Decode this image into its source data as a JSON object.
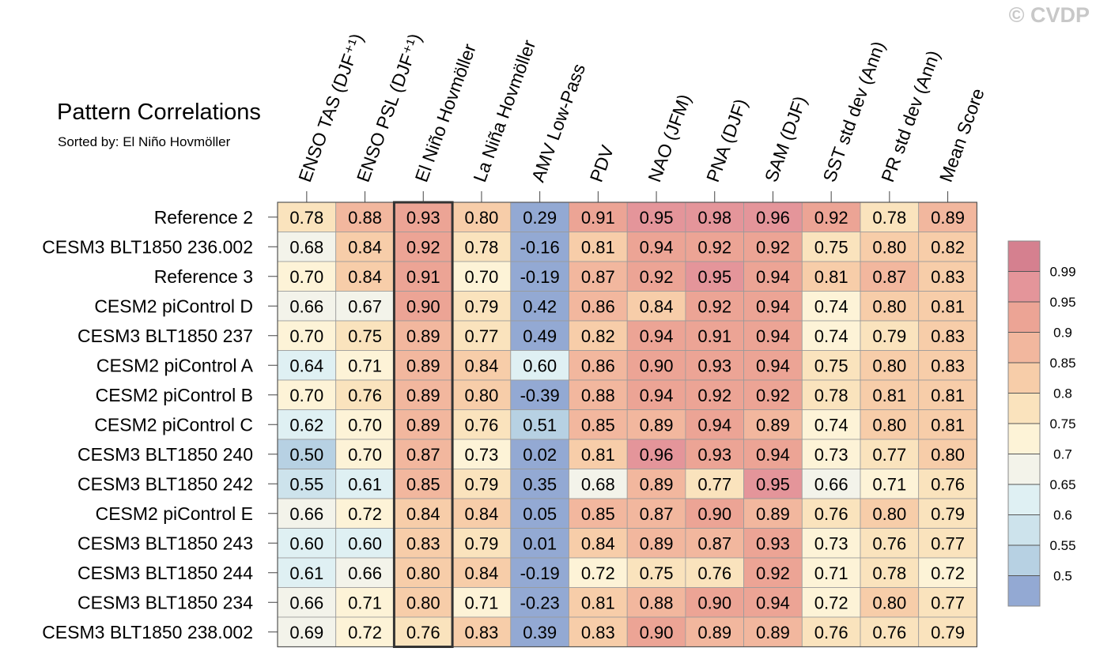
{
  "watermark": "© CVDP",
  "title": "Pattern Correlations",
  "subtitle": "Sorted by: El Niño Hovmöller",
  "chart_data": {
    "type": "heatmap",
    "title": "Pattern Correlations",
    "subtitle": "Sorted by: El Niño Hovmöller",
    "columns": [
      "ENSO TAS (DJF⁺¹)",
      "ENSO PSL (DJF⁺¹)",
      "El Niño Hovmöller",
      "La Niña Hovmöller",
      "AMV Low-Pass",
      "PDV",
      "NAO (JFM)",
      "PNA (DJF)",
      "SAM (DJF)",
      "SST std dev (Ann)",
      "PR std dev (Ann)",
      "Mean Score"
    ],
    "highlighted_column": "El Niño Hovmöller",
    "rows": [
      {
        "name": "Reference 2",
        "values": [
          0.78,
          0.88,
          0.93,
          0.8,
          0.29,
          0.91,
          0.95,
          0.98,
          0.96,
          0.92,
          0.78,
          0.89
        ]
      },
      {
        "name": "CESM3 BLT1850 236.002",
        "values": [
          0.68,
          0.84,
          0.92,
          0.78,
          -0.16,
          0.81,
          0.94,
          0.92,
          0.92,
          0.75,
          0.8,
          0.82
        ]
      },
      {
        "name": "Reference 3",
        "values": [
          0.7,
          0.84,
          0.91,
          0.7,
          -0.19,
          0.87,
          0.92,
          0.95,
          0.94,
          0.81,
          0.87,
          0.83
        ]
      },
      {
        "name": "CESM2 piControl D",
        "values": [
          0.66,
          0.67,
          0.9,
          0.79,
          0.42,
          0.86,
          0.84,
          0.92,
          0.94,
          0.74,
          0.8,
          0.81
        ]
      },
      {
        "name": "CESM3 BLT1850 237",
        "values": [
          0.7,
          0.75,
          0.89,
          0.77,
          0.49,
          0.82,
          0.94,
          0.91,
          0.94,
          0.74,
          0.79,
          0.83
        ]
      },
      {
        "name": "CESM2 piControl A",
        "values": [
          0.64,
          0.71,
          0.89,
          0.84,
          0.6,
          0.86,
          0.9,
          0.93,
          0.94,
          0.75,
          0.8,
          0.83
        ]
      },
      {
        "name": "CESM2 piControl B",
        "values": [
          0.7,
          0.76,
          0.89,
          0.8,
          -0.39,
          0.88,
          0.94,
          0.92,
          0.92,
          0.78,
          0.81,
          0.81
        ]
      },
      {
        "name": "CESM2 piControl C",
        "values": [
          0.62,
          0.7,
          0.89,
          0.76,
          0.51,
          0.85,
          0.89,
          0.94,
          0.89,
          0.74,
          0.8,
          0.81
        ]
      },
      {
        "name": "CESM3 BLT1850 240",
        "values": [
          0.5,
          0.7,
          0.87,
          0.73,
          0.02,
          0.81,
          0.96,
          0.93,
          0.94,
          0.73,
          0.77,
          0.8
        ]
      },
      {
        "name": "CESM3 BLT1850 242",
        "values": [
          0.55,
          0.61,
          0.85,
          0.79,
          0.35,
          0.68,
          0.89,
          0.77,
          0.95,
          0.66,
          0.71,
          0.76
        ]
      },
      {
        "name": "CESM2 piControl E",
        "values": [
          0.66,
          0.72,
          0.84,
          0.84,
          0.05,
          0.85,
          0.87,
          0.9,
          0.89,
          0.76,
          0.8,
          0.79
        ]
      },
      {
        "name": "CESM3 BLT1850 243",
        "values": [
          0.6,
          0.6,
          0.83,
          0.79,
          0.01,
          0.84,
          0.89,
          0.87,
          0.93,
          0.73,
          0.76,
          0.77
        ]
      },
      {
        "name": "CESM3 BLT1850 244",
        "values": [
          0.61,
          0.66,
          0.8,
          0.84,
          -0.19,
          0.72,
          0.75,
          0.76,
          0.92,
          0.71,
          0.78,
          0.72
        ]
      },
      {
        "name": "CESM3 BLT1850 234",
        "values": [
          0.66,
          0.71,
          0.8,
          0.71,
          -0.23,
          0.81,
          0.88,
          0.9,
          0.94,
          0.72,
          0.8,
          0.77
        ]
      },
      {
        "name": "CESM3 BLT1850 238.002",
        "values": [
          0.69,
          0.72,
          0.76,
          0.83,
          0.39,
          0.83,
          0.9,
          0.89,
          0.89,
          0.76,
          0.76,
          0.79
        ]
      }
    ],
    "colorbar": {
      "levels": [
        "0.99",
        "0.95",
        "0.9",
        "0.85",
        "0.8",
        "0.75",
        "0.7",
        "0.65",
        "0.6",
        "0.55",
        "0.5"
      ],
      "thresholds": [
        0.99,
        0.95,
        0.9,
        0.85,
        0.8,
        0.75,
        0.7,
        0.65,
        0.6,
        0.55,
        0.5
      ],
      "colors": [
        "#d5808f",
        "#e4959a",
        "#eca495",
        "#f2b79e",
        "#f7cda9",
        "#fae3bd",
        "#fdf3d7",
        "#f3f3ea",
        "#dff0f3",
        "#cde3ec",
        "#b7d1e3",
        "#93a9d3"
      ]
    }
  }
}
